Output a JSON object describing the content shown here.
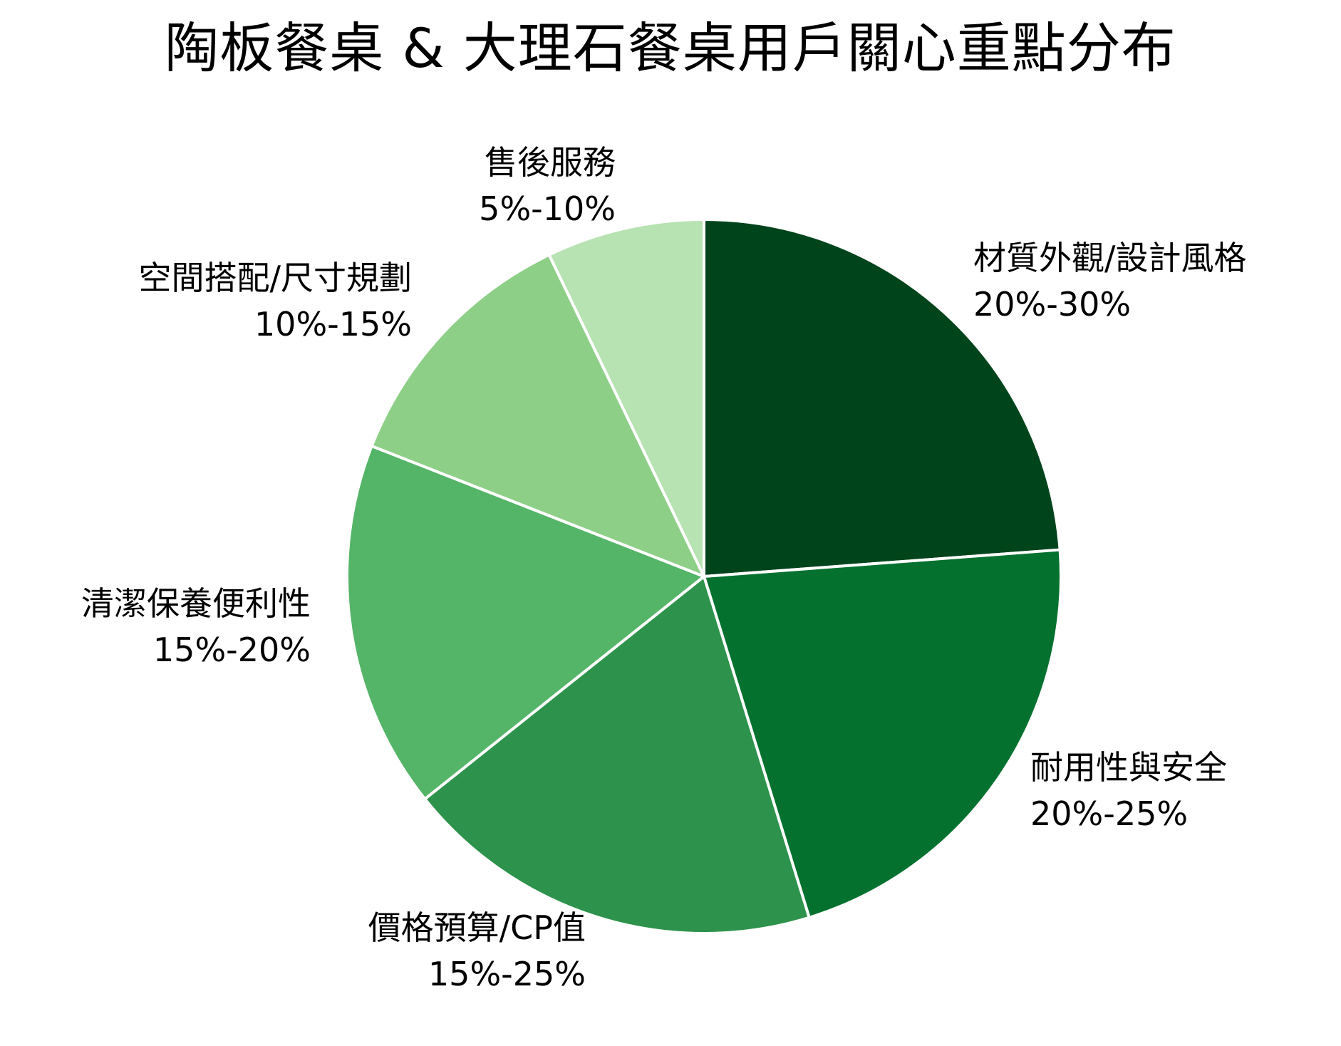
{
  "title": "陶板餐桌 & 大理石餐桌用戶關心重點分布",
  "chart_data": {
    "type": "pie",
    "title": "陶板餐桌 & 大理石餐桌用戶關心重點分布",
    "start_angle": "90deg (12 o'clock), clockwise",
    "categories": [
      "材質外觀/設計風格",
      "耐用性與安全",
      "價格預算/CP值",
      "清潔保養便利性",
      "空間搭配/尺寸規劃",
      "售後服務"
    ],
    "ranges": [
      "20%-30%",
      "20%-25%",
      "15%-25%",
      "15%-20%",
      "10%-15%",
      "5%-10%"
    ],
    "values": [
      25,
      22.5,
      20,
      17.5,
      12.5,
      7.5
    ],
    "normalized_share_pct": [
      23.8,
      21.4,
      19.0,
      16.7,
      11.9,
      7.1
    ],
    "colors": [
      "#00441b",
      "#05712f",
      "#2d924b",
      "#54b467",
      "#8ecf88",
      "#b7e2b2"
    ],
    "legend": "none (labels placed beside slices)",
    "edge_color": "#ffffff"
  },
  "labels": [
    {
      "name": "材質外觀/設計風格",
      "range": "20%-30%"
    },
    {
      "name": "耐用性與安全",
      "range": "20%-25%"
    },
    {
      "name": "價格預算/CP值",
      "range": "15%-25%"
    },
    {
      "name": "清潔保養便利性",
      "range": "15%-20%"
    },
    {
      "name": "空間搭配/尺寸規劃",
      "range": "10%-15%"
    },
    {
      "name": "售後服務",
      "range": "5%-10%"
    }
  ]
}
